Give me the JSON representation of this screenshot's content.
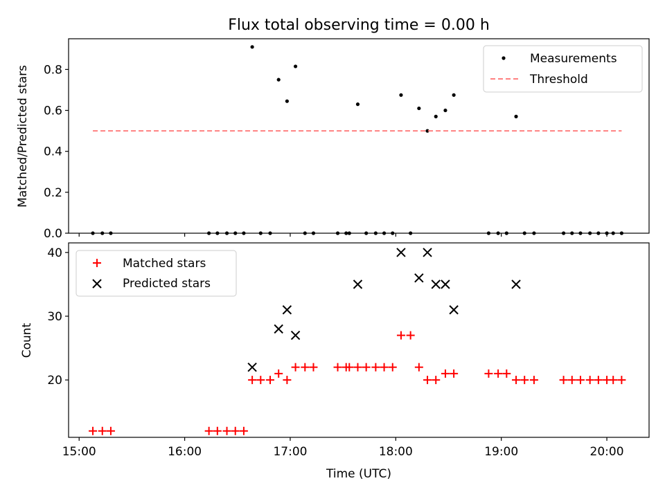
{
  "title": "Flux total observing time = 0.00 h",
  "chart_data": [
    {
      "type": "scatter",
      "ylabel": "Matched/Predicted stars",
      "xlim": [
        14.9,
        20.4
      ],
      "ylim": [
        0,
        0.95
      ],
      "yticks": [
        0.0,
        0.2,
        0.4,
        0.6,
        0.8
      ],
      "ytick_labels": [
        "0.0",
        "0.2",
        "0.4",
        "0.6",
        "0.8"
      ],
      "xticks": [
        15,
        16,
        17,
        18,
        19,
        20
      ],
      "legend": {
        "placement": "top-right",
        "entries": [
          "Measurements",
          "Threshold"
        ]
      },
      "series": [
        {
          "name": "Measurements",
          "marker": "dot",
          "color": "#000000",
          "points": [
            [
              15.13,
              0
            ],
            [
              15.22,
              0
            ],
            [
              15.3,
              0
            ],
            [
              16.23,
              0
            ],
            [
              16.31,
              0
            ],
            [
              16.4,
              0
            ],
            [
              16.48,
              0
            ],
            [
              16.56,
              0
            ],
            [
              16.64,
              0.91
            ],
            [
              16.72,
              0
            ],
            [
              16.81,
              0
            ],
            [
              16.89,
              0.75
            ],
            [
              16.97,
              0.645
            ],
            [
              17.05,
              0.815
            ],
            [
              17.14,
              0
            ],
            [
              17.22,
              0
            ],
            [
              17.45,
              0
            ],
            [
              17.53,
              0
            ],
            [
              17.56,
              0
            ],
            [
              17.64,
              0.63
            ],
            [
              17.72,
              0
            ],
            [
              17.81,
              0
            ],
            [
              17.89,
              0
            ],
            [
              17.97,
              0
            ],
            [
              18.05,
              0.675
            ],
            [
              18.14,
              0
            ],
            [
              18.22,
              0.61
            ],
            [
              18.3,
              0.5
            ],
            [
              18.38,
              0.57
            ],
            [
              18.47,
              0.6
            ],
            [
              18.55,
              0.675
            ],
            [
              18.88,
              0
            ],
            [
              18.97,
              0
            ],
            [
              19.05,
              0
            ],
            [
              19.14,
              0.57
            ],
            [
              19.22,
              0
            ],
            [
              19.31,
              0
            ],
            [
              19.59,
              0
            ],
            [
              19.67,
              0
            ],
            [
              19.75,
              0
            ],
            [
              19.84,
              0
            ],
            [
              19.92,
              0
            ],
            [
              20.0,
              0
            ],
            [
              20.06,
              0
            ],
            [
              20.14,
              0
            ]
          ]
        },
        {
          "name": "Threshold",
          "marker": "dashed-line",
          "color": "#ff8080",
          "points": [
            [
              15.13,
              0.5
            ],
            [
              20.14,
              0.5
            ]
          ]
        }
      ]
    },
    {
      "type": "scatter",
      "ylabel": "Count",
      "xlabel": "Time (UTC)",
      "xlim": [
        14.9,
        20.4
      ],
      "ylim": [
        11,
        41.5
      ],
      "yticks": [
        20,
        30,
        40
      ],
      "ytick_labels": [
        "20",
        "30",
        "40"
      ],
      "xticks": [
        15,
        16,
        17,
        18,
        19,
        20
      ],
      "xtick_labels": [
        "15:00",
        "16:00",
        "17:00",
        "18:00",
        "19:00",
        "20:00"
      ],
      "legend": {
        "placement": "top-left",
        "entries": [
          "Matched stars",
          "Predicted stars"
        ]
      },
      "series": [
        {
          "name": "Matched stars",
          "marker": "plus",
          "color": "#ff0000",
          "points": [
            [
              15.13,
              12
            ],
            [
              15.22,
              12
            ],
            [
              15.3,
              12
            ],
            [
              16.23,
              12
            ],
            [
              16.31,
              12
            ],
            [
              16.4,
              12
            ],
            [
              16.48,
              12
            ],
            [
              16.56,
              12
            ],
            [
              16.64,
              20
            ],
            [
              16.72,
              20
            ],
            [
              16.81,
              20
            ],
            [
              16.89,
              21
            ],
            [
              16.97,
              20
            ],
            [
              17.05,
              22
            ],
            [
              17.14,
              22
            ],
            [
              17.22,
              22
            ],
            [
              17.45,
              22
            ],
            [
              17.53,
              22
            ],
            [
              17.56,
              22
            ],
            [
              17.64,
              22
            ],
            [
              17.72,
              22
            ],
            [
              17.81,
              22
            ],
            [
              17.89,
              22
            ],
            [
              17.97,
              22
            ],
            [
              18.05,
              27
            ],
            [
              18.14,
              27
            ],
            [
              18.22,
              22
            ],
            [
              18.3,
              20
            ],
            [
              18.38,
              20
            ],
            [
              18.47,
              21
            ],
            [
              18.55,
              21
            ],
            [
              18.88,
              21
            ],
            [
              18.97,
              21
            ],
            [
              19.05,
              21
            ],
            [
              19.14,
              20
            ],
            [
              19.22,
              20
            ],
            [
              19.31,
              20
            ],
            [
              19.59,
              20
            ],
            [
              19.67,
              20
            ],
            [
              19.75,
              20
            ],
            [
              19.84,
              20
            ],
            [
              19.92,
              20
            ],
            [
              20.0,
              20
            ],
            [
              20.06,
              20
            ],
            [
              20.14,
              20
            ]
          ]
        },
        {
          "name": "Predicted stars",
          "marker": "x",
          "color": "#000000",
          "points": [
            [
              16.64,
              22
            ],
            [
              16.89,
              28
            ],
            [
              16.97,
              31
            ],
            [
              17.05,
              27
            ],
            [
              17.64,
              35
            ],
            [
              18.05,
              40
            ],
            [
              18.22,
              36
            ],
            [
              18.3,
              40
            ],
            [
              18.38,
              35
            ],
            [
              18.47,
              35
            ],
            [
              18.55,
              31
            ],
            [
              19.14,
              35
            ]
          ]
        }
      ]
    }
  ]
}
